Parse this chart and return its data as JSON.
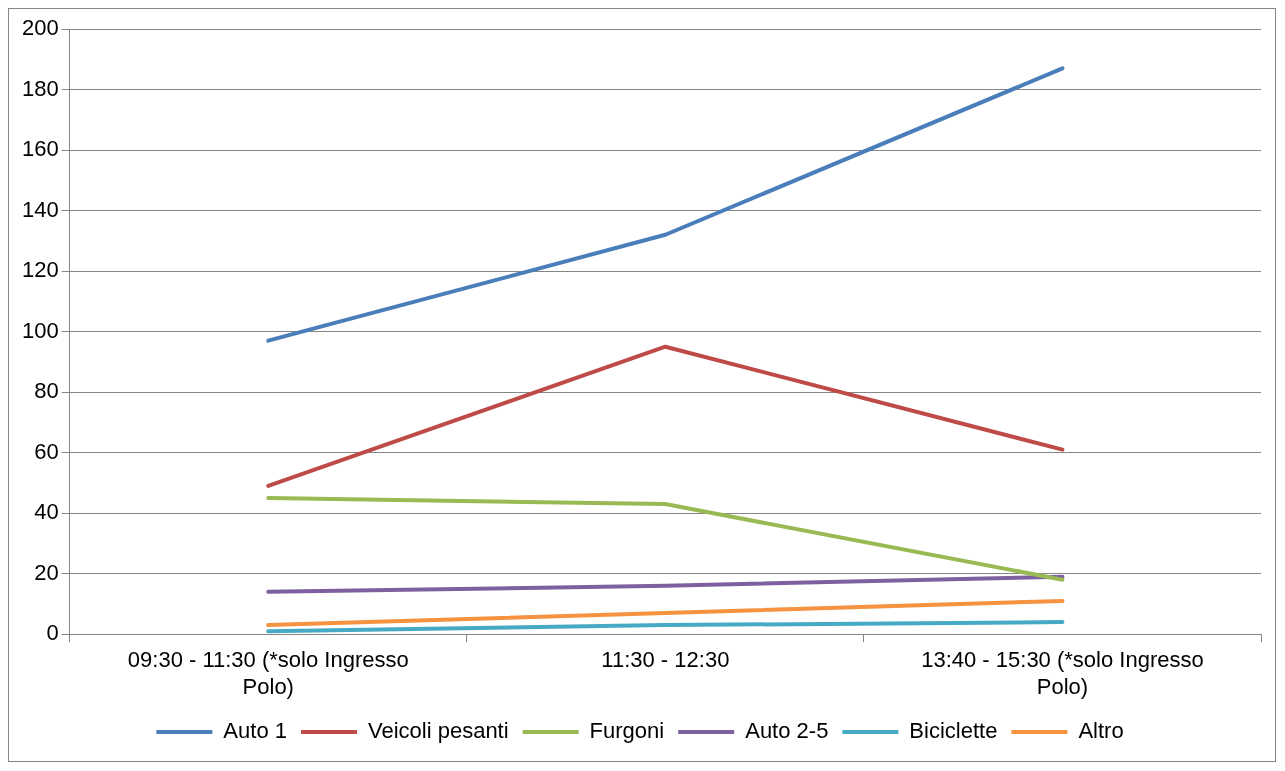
{
  "chart_data": {
    "type": "line",
    "categories": [
      "09:30 - 11:30 (*solo Ingresso Polo)",
      "11:30 - 12:30",
      "13:40 - 15:30 (*solo Ingresso Polo)"
    ],
    "series": [
      {
        "name": "Auto 1",
        "color": "#4a7ebb",
        "values": [
          97,
          132,
          187
        ]
      },
      {
        "name": "Veicoli pesanti",
        "color": "#be4b48",
        "values": [
          49,
          95,
          61
        ]
      },
      {
        "name": "Furgoni",
        "color": "#98b954",
        "values": [
          45,
          43,
          18
        ]
      },
      {
        "name": "Auto 2-5",
        "color": "#7d60a0",
        "values": [
          14,
          16,
          19
        ]
      },
      {
        "name": "Biciclette",
        "color": "#46aac5",
        "values": [
          1,
          3,
          4
        ]
      },
      {
        "name": "Altro",
        "color": "#f69240",
        "values": [
          3,
          7,
          11
        ]
      }
    ],
    "ylim": [
      0,
      200
    ],
    "yticks": [
      0,
      20,
      40,
      60,
      80,
      100,
      120,
      140,
      160,
      180,
      200
    ],
    "grid": "y",
    "legend": "bottom",
    "marker": "none",
    "line_style": "solid"
  }
}
